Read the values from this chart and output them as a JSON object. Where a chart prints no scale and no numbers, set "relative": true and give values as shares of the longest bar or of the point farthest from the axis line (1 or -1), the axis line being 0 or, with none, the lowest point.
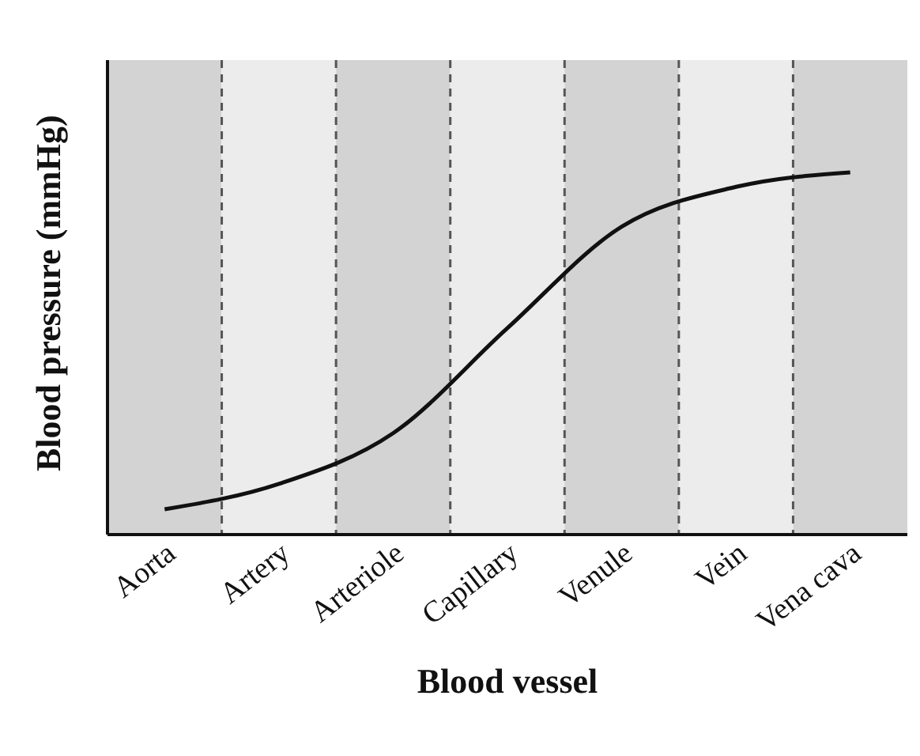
{
  "chart_data": {
    "type": "line",
    "relative": true,
    "xlabel": "Blood vessel",
    "ylabel": "Blood pressure (mmHg)",
    "categories": [
      "Aorta",
      "Artery",
      "Arteriole",
      "Capillary",
      "Venule",
      "Vein",
      "Vena cava"
    ],
    "series": [
      {
        "color": "#111111",
        "values": [
          0.07,
          0.14,
          0.28,
          0.57,
          0.85,
          0.96,
          1
        ]
      }
    ],
    "marker": "none",
    "line_style": "solid",
    "bands": [
      {
        "axis": "x",
        "from": "Aorta",
        "to": "Aorta",
        "color": "#d3d3d3"
      },
      {
        "axis": "x",
        "from": "Artery",
        "to": "Artery",
        "color": "#ececec"
      },
      {
        "axis": "x",
        "from": "Arteriole",
        "to": "Arteriole",
        "color": "#d3d3d3"
      },
      {
        "axis": "x",
        "from": "Capillary",
        "to": "Capillary",
        "color": "#ececec"
      },
      {
        "axis": "x",
        "from": "Venule",
        "to": "Venule",
        "color": "#d3d3d3"
      },
      {
        "axis": "x",
        "from": "Vein",
        "to": "Vein",
        "color": "#ececec"
      },
      {
        "axis": "x",
        "from": "Vena cava",
        "to": "Vena cava",
        "color": "#d3d3d3"
      }
    ]
  }
}
